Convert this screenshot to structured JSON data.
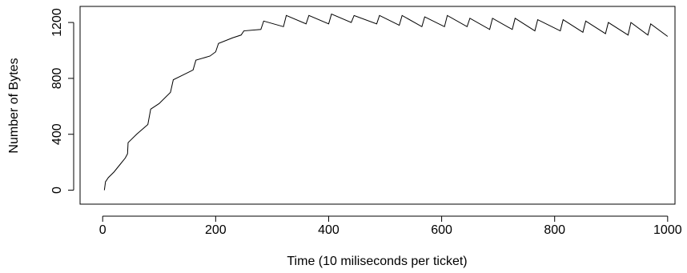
{
  "chart_data": {
    "type": "line",
    "xlabel": "Time (10 miliseconds per ticket)",
    "ylabel": "Number of Bytes",
    "x": [
      3,
      5,
      10,
      20,
      30,
      40,
      44,
      45,
      60,
      80,
      85,
      100,
      120,
      125,
      140,
      160,
      165,
      190,
      200,
      205,
      230,
      245,
      250,
      280,
      285,
      320,
      325,
      360,
      365,
      400,
      405,
      440,
      445,
      485,
      490,
      525,
      530,
      565,
      570,
      605,
      610,
      645,
      650,
      685,
      690,
      725,
      730,
      765,
      770,
      810,
      815,
      850,
      855,
      890,
      895,
      930,
      935,
      965,
      970,
      1000
    ],
    "series": [
      {
        "color": "#000000",
        "values": [
          0,
          60,
          90,
          130,
          180,
          230,
          260,
          340,
          400,
          470,
          580,
          620,
          700,
          790,
          820,
          860,
          930,
          960,
          990,
          1050,
          1090,
          1110,
          1140,
          1150,
          1210,
          1170,
          1250,
          1190,
          1250,
          1190,
          1260,
          1200,
          1250,
          1190,
          1250,
          1180,
          1250,
          1170,
          1240,
          1170,
          1250,
          1170,
          1230,
          1150,
          1230,
          1150,
          1230,
          1140,
          1220,
          1140,
          1220,
          1130,
          1210,
          1120,
          1200,
          1110,
          1200,
          1110,
          1190,
          1100
        ]
      }
    ],
    "xlim": [
      -40,
      1013
    ],
    "ylim": [
      -100,
      1315
    ],
    "xticks": [
      0,
      200,
      400,
      600,
      800,
      1000
    ],
    "yticks": [
      0,
      400,
      800,
      1200
    ]
  }
}
